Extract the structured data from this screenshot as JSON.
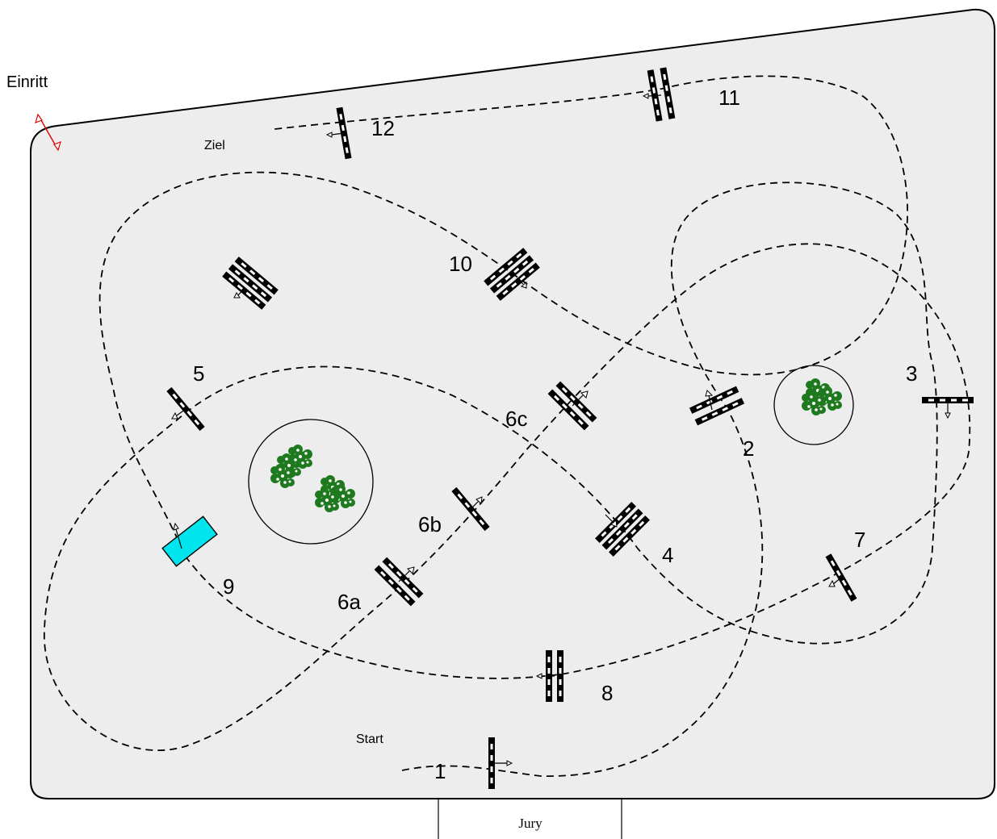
{
  "labels": {
    "entrance": "Einritt",
    "finish": "Ziel",
    "start": "Start",
    "jury": "Jury"
  },
  "obstacles": [
    {
      "id": "1",
      "kind": "vertical"
    },
    {
      "id": "2",
      "kind": "oxer"
    },
    {
      "id": "3",
      "kind": "vertical"
    },
    {
      "id": "4",
      "kind": "triple-bar"
    },
    {
      "id": "5",
      "kind": "vertical"
    },
    {
      "id": "6a",
      "kind": "oxer"
    },
    {
      "id": "6b",
      "kind": "vertical"
    },
    {
      "id": "6c",
      "kind": "oxer"
    },
    {
      "id": "7",
      "kind": "vertical"
    },
    {
      "id": "8",
      "kind": "oxer"
    },
    {
      "id": "9",
      "kind": "water"
    },
    {
      "id": "10",
      "kind": "triple-bar"
    },
    {
      "id": "11",
      "kind": "oxer"
    },
    {
      "id": "12",
      "kind": "vertical"
    }
  ],
  "colors": {
    "arena": "#ededed",
    "water": "#00e5ee",
    "bush": "#1f7a1f",
    "entrance_arrow": "#e00000"
  }
}
